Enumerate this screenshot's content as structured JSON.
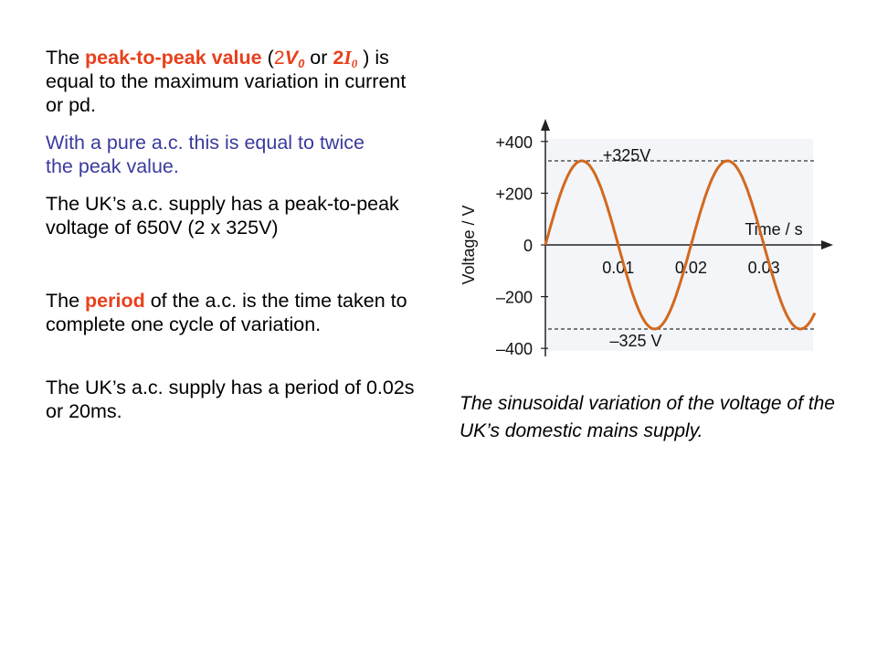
{
  "para1": {
    "lead": "The ",
    "term": "peak-to-peak value",
    "open_paren": " (",
    "two_a": "2",
    "v_sym": "V",
    "v_sub": "0",
    "or_text": " or ",
    "two_b": "2",
    "i_sym": "I",
    "i_sub": "0",
    "rest": " ) is equal to the maximum variation in current or pd."
  },
  "para2": "With a pure a.c. this is equal to twice the peak value.",
  "para3": "The UK’s a.c. supply has a peak-to-peak  voltage of 650V (2 x 325V)",
  "para4": {
    "lead": "The ",
    "term": "period",
    "rest": " of the a.c. is the time taken to complete one cycle of variation."
  },
  "para5": "The UK’s a.c. supply has a period of 0.02s or 20ms.",
  "caption": "The sinusoidal variation of the voltage of the UK’s domestic mains supply.",
  "chart_data": {
    "type": "line",
    "title": "",
    "xlabel": "Time / s",
    "ylabel": "Voltage / V",
    "x_ticks": [
      "0.01",
      "0.02",
      "0.03"
    ],
    "y_ticks": [
      "+400",
      "+200",
      "0",
      "–200",
      "–400"
    ],
    "x_tick_values": [
      0.01,
      0.02,
      0.03
    ],
    "y_tick_values": [
      400,
      200,
      0,
      -200,
      -400
    ],
    "xlim": [
      0,
      0.037
    ],
    "ylim": [
      -400,
      400
    ],
    "peak_labels": [
      "+325V",
      "–325 V"
    ],
    "peak_values": [
      325,
      -325
    ],
    "series": [
      {
        "name": "",
        "amplitude": 325,
        "frequency": 50,
        "color": "#d2691e"
      }
    ]
  }
}
